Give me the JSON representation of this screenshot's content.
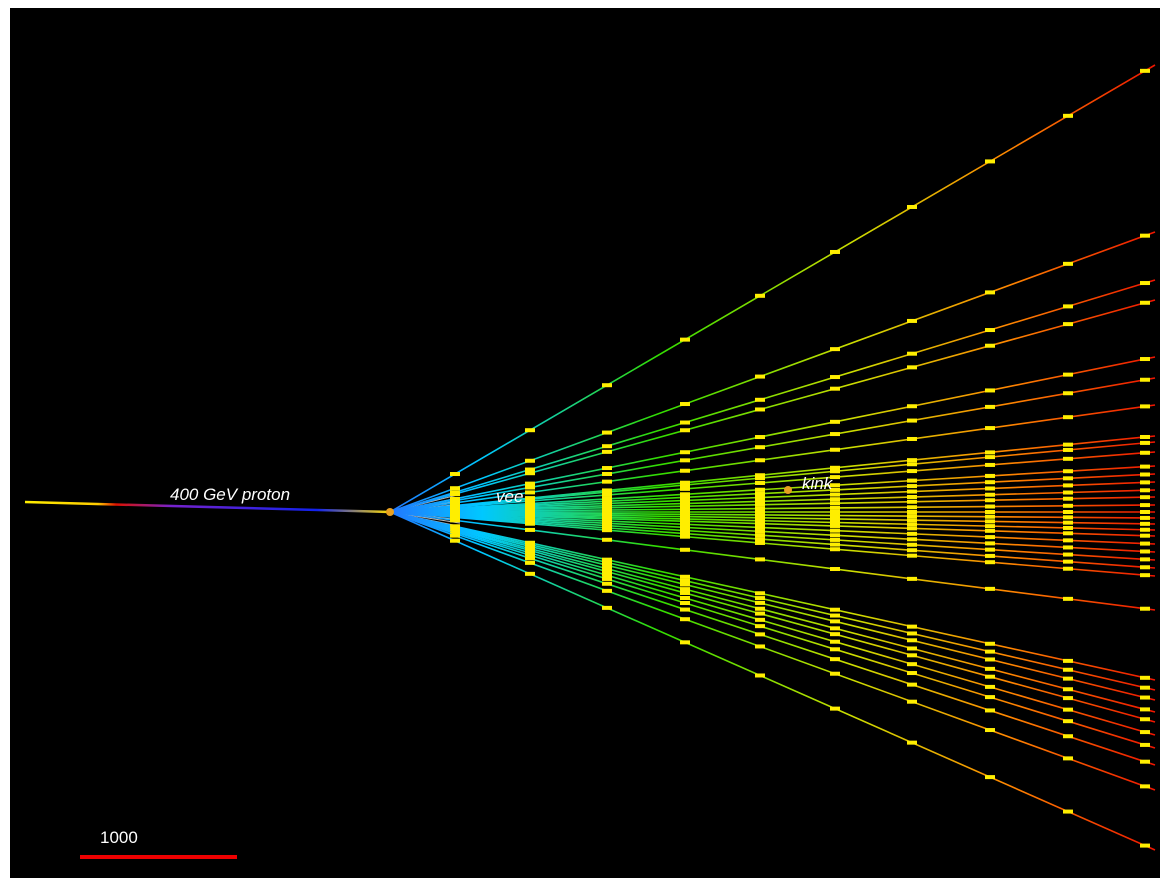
{
  "labels": {
    "beam": "400 GeV proton",
    "vee": "vee",
    "kink": "kink",
    "scale": "1000"
  }
}
